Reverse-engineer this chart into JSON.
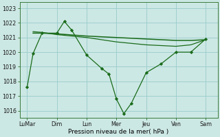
{
  "background_color": "#cce8e4",
  "grid_color": "#9ecece",
  "line_color": "#1a6b1a",
  "marker_color": "#1a6b1a",
  "x_tick_labels": [
    "LuMar",
    "Dim",
    "Lun",
    "Mer",
    "Jeu",
    "Ven",
    "Sam"
  ],
  "x_tick_positions": [
    0,
    2,
    4,
    6,
    8,
    10,
    12
  ],
  "xlabel": "Pression niveau de la mer( hPa )",
  "ylim": [
    1015.5,
    1023.4
  ],
  "yticks": [
    1016,
    1017,
    1018,
    1019,
    1020,
    1021,
    1022,
    1023
  ],
  "series1_x": [
    0,
    0.4,
    1.0,
    2.0,
    2.5,
    3.0,
    4.0,
    5.0,
    5.5,
    6.0,
    6.5,
    7.0,
    8.0,
    9.0,
    10.0,
    11.0,
    12.0
  ],
  "series1_y": [
    1017.6,
    1019.9,
    1021.3,
    1021.3,
    1022.1,
    1021.5,
    1019.8,
    1018.9,
    1018.5,
    1016.8,
    1015.8,
    1016.5,
    1018.6,
    1019.2,
    1020.0,
    1020.0,
    1020.9
  ],
  "series2_x": [
    0.4,
    1.0,
    2.0,
    4.0,
    5.0,
    6.0,
    7.0,
    8.0,
    9.0,
    10.0,
    11.0,
    12.0
  ],
  "series2_y": [
    1021.3,
    1021.3,
    1021.25,
    1021.1,
    1021.05,
    1021.0,
    1020.95,
    1020.9,
    1020.85,
    1020.8,
    1020.8,
    1020.85
  ],
  "series3_x": [
    0.4,
    1.0,
    2.0,
    4.0,
    5.0,
    6.0,
    7.0,
    8.0,
    9.0,
    10.0,
    11.0,
    12.0
  ],
  "series3_y": [
    1021.4,
    1021.35,
    1021.2,
    1021.0,
    1020.85,
    1020.7,
    1020.6,
    1020.5,
    1020.45,
    1020.4,
    1020.5,
    1020.85
  ]
}
